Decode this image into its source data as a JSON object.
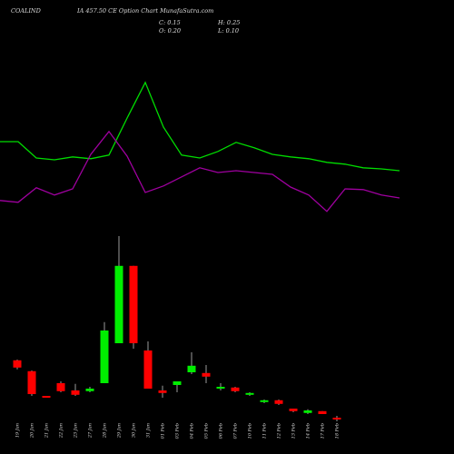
{
  "chart_data": {
    "type": "candlestick",
    "symbol": "COALIND",
    "title": "IA 457.50  CE Option  Chart MunafaSutra.com",
    "stats": [
      "C: 0.15",
      "H: 0.25",
      "O: 0.20",
      "L: 0.10"
    ],
    "categories": [
      "19 Jan",
      "20 Jan",
      "21 Jan",
      "22 Jan",
      "23 Jan",
      "27 Jan",
      "28 Jan",
      "29 Jan",
      "30 Jan",
      "31 Jan",
      "01 Feb",
      "03 Feb",
      "04 Feb",
      "05 Feb",
      "06 Feb",
      "07 Feb",
      "10 Feb",
      "11 Feb",
      "12 Feb",
      "13 Feb",
      "14 Feb",
      "17 Feb",
      "18 Feb"
    ],
    "open": [
      1.78,
      1.48,
      0.8,
      1.15,
      0.95,
      0.93,
      1.15,
      2.25,
      4.38,
      2.05,
      0.95,
      1.1,
      1.45,
      1.43,
      1.0,
      1.03,
      0.83,
      0.63,
      0.68,
      0.45,
      0.33,
      0.38,
      0.2
    ],
    "high": [
      1.8,
      1.5,
      0.8,
      1.2,
      1.13,
      1.05,
      2.83,
      5.2,
      4.38,
      2.3,
      1.08,
      1.2,
      2.0,
      1.65,
      1.15,
      1.05,
      0.9,
      0.7,
      0.7,
      0.45,
      0.43,
      0.38,
      0.25
    ],
    "low": [
      1.53,
      0.8,
      0.75,
      0.9,
      0.8,
      0.9,
      1.15,
      2.25,
      2.1,
      1.0,
      0.75,
      0.9,
      1.4,
      1.15,
      0.95,
      0.9,
      0.8,
      0.6,
      0.55,
      0.35,
      0.3,
      0.3,
      0.1
    ],
    "close": [
      1.58,
      0.85,
      0.75,
      0.93,
      0.83,
      1.0,
      2.6,
      4.38,
      2.25,
      1.0,
      0.88,
      1.2,
      1.63,
      1.33,
      1.05,
      0.93,
      0.88,
      0.68,
      0.58,
      0.38,
      0.4,
      0.3,
      0.15
    ],
    "up_color": "#00ee00",
    "down_color": "#ff0000",
    "wick_color": "#dddddd",
    "series": [
      {
        "color": "#00dd00",
        "values": [
          7.8,
          7.8,
          7.35,
          7.3,
          7.38,
          7.33,
          7.43,
          8.45,
          9.43,
          8.2,
          7.43,
          7.35,
          7.53,
          7.78,
          7.63,
          7.45,
          7.38,
          7.33,
          7.23,
          7.18,
          7.08,
          7.05,
          7.0
        ]
      },
      {
        "color": "#a000a0",
        "values": [
          6.18,
          6.13,
          6.53,
          6.33,
          6.5,
          7.45,
          8.08,
          7.4,
          6.4,
          6.58,
          6.83,
          7.08,
          6.95,
          7.0,
          6.95,
          6.9,
          6.55,
          6.33,
          5.88,
          6.5,
          6.48,
          6.33,
          6.25
        ]
      }
    ],
    "ylim": [
      0,
      11.7
    ]
  }
}
